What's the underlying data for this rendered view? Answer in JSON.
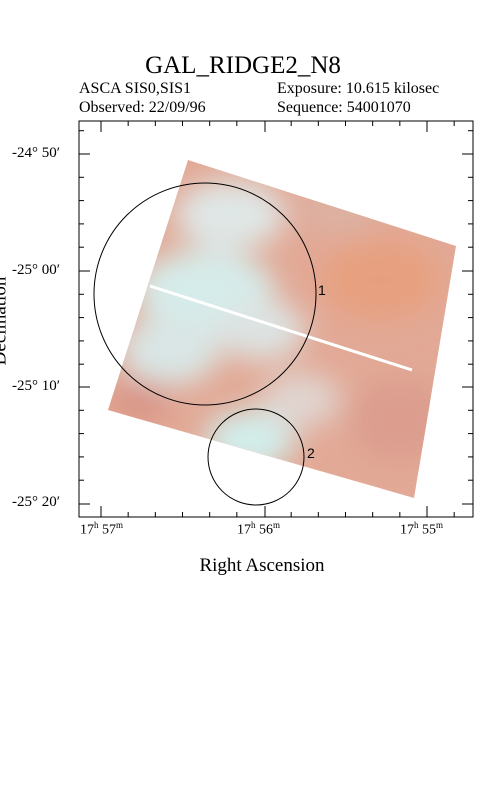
{
  "title": "GAL_RIDGE2_N8",
  "header": {
    "instrument": "ASCA SIS0,SIS1",
    "exposure": "Exposure: 10.615 kilosec",
    "observed": "Observed: 22/09/96",
    "sequence": "Sequence: 54001070"
  },
  "axes": {
    "xlabel": "Right Ascension",
    "ylabel": "Declination",
    "dec_ticks": [
      "-24° 50′",
      "-25° 00′",
      "-25° 10′",
      "-25° 20′"
    ],
    "ra_ticks": [
      {
        "h": "17",
        "m": "57"
      },
      {
        "h": "17",
        "m": "56"
      },
      {
        "h": "17",
        "m": "55"
      }
    ]
  },
  "regions": [
    {
      "label": "1"
    },
    {
      "label": "2"
    }
  ],
  "colors": {
    "image_base": "#e4a594",
    "image_bright": "#d9eee9",
    "frame": "#000000"
  }
}
